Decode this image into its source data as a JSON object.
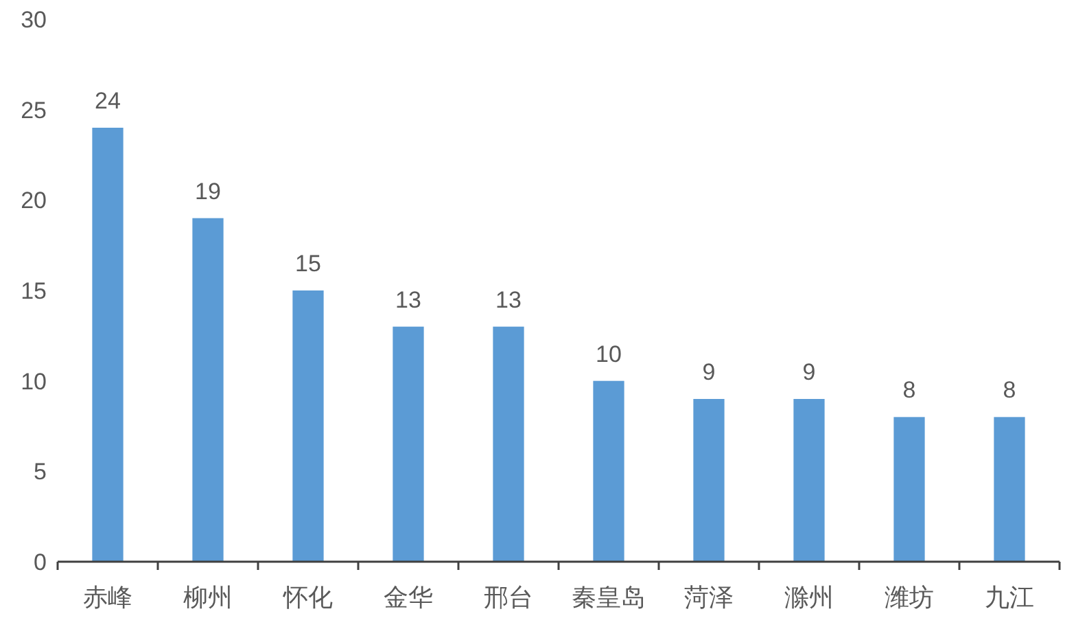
{
  "chart_data": {
    "type": "bar",
    "categories": [
      "赤峰",
      "柳州",
      "怀化",
      "金华",
      "邢台",
      "秦皇岛",
      "菏泽",
      "滁州",
      "潍坊",
      "九江"
    ],
    "values": [
      24,
      19,
      15,
      13,
      13,
      10,
      9,
      9,
      8,
      8
    ],
    "color": "#5b9bd5",
    "ylim": [
      0,
      30
    ],
    "yticks": [
      0,
      5,
      10,
      15,
      20,
      25,
      30
    ],
    "data_labels": true
  }
}
